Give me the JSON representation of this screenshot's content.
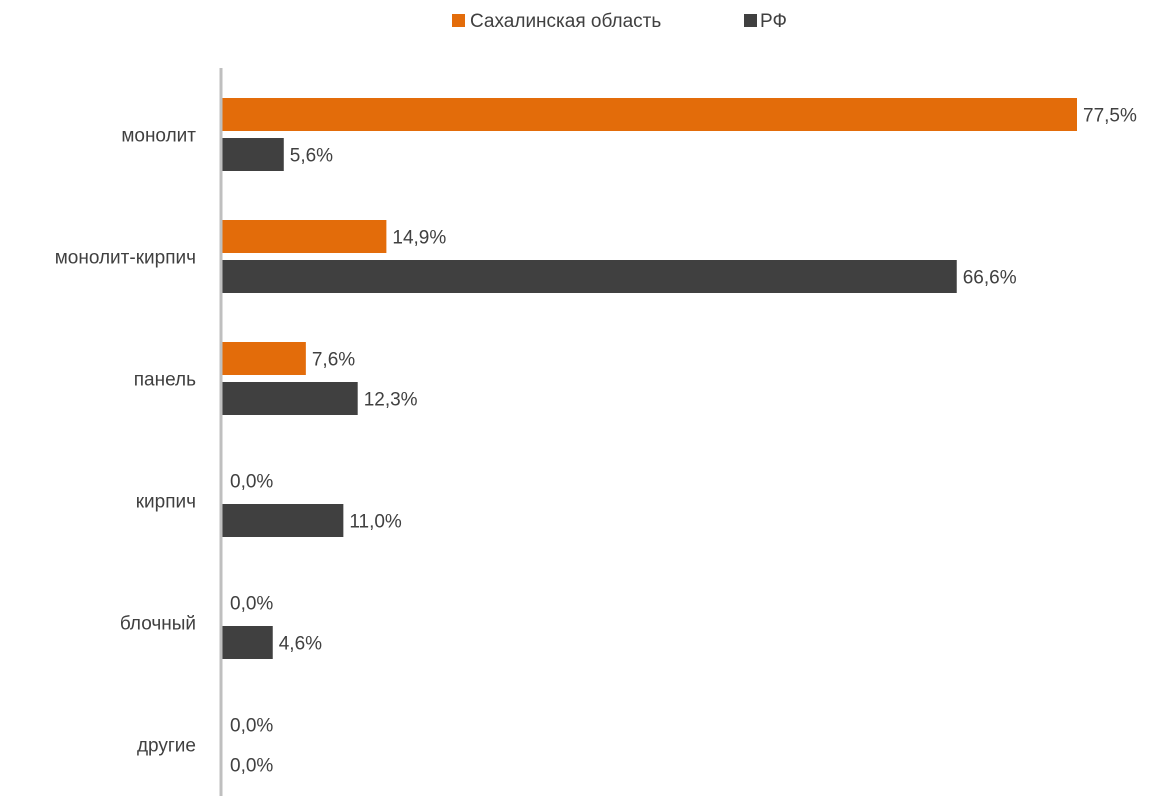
{
  "chart_data": {
    "type": "bar",
    "orientation": "horizontal",
    "categories": [
      "монолит",
      "монолит-кирпич",
      "панель",
      "кирпич",
      "блочный",
      "другие"
    ],
    "series": [
      {
        "name": "Сахалинская область",
        "color": "#E36C0A",
        "values": [
          77.5,
          14.9,
          7.6,
          0.0,
          0.0,
          0.0
        ],
        "labels": [
          "77,5%",
          "14,9%",
          "7,6%",
          "0,0%",
          "0,0%",
          "0,0%"
        ]
      },
      {
        "name": "РФ",
        "color": "#404040",
        "values": [
          5.6,
          66.6,
          12.3,
          11.0,
          4.6,
          0.0
        ],
        "labels": [
          "5,6%",
          "66,6%",
          "12,3%",
          "11,0%",
          "4,6%",
          "0,0%"
        ]
      }
    ],
    "xlim": [
      0,
      77.5
    ],
    "legend_position": "top",
    "grid": false,
    "axis_color": "#BFBFBF",
    "title": "",
    "xlabel": "",
    "ylabel": ""
  }
}
